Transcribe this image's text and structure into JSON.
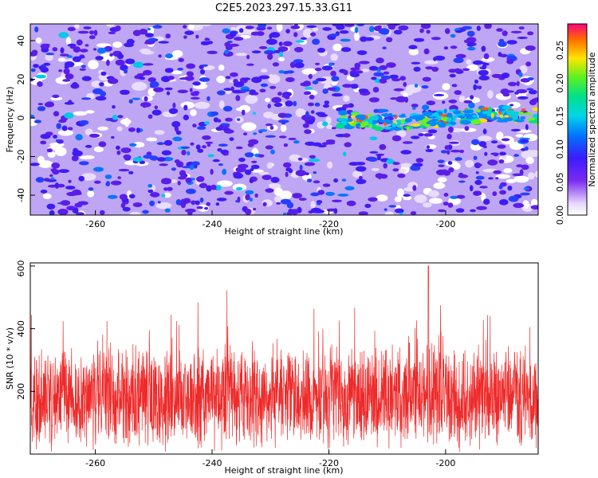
{
  "chart_data": [
    {
      "type": "heatmap",
      "title": "C2E5.2023.297.15.33.G11",
      "xlabel": "Height of straight line (km)",
      "ylabel": "Frequency (Hz)",
      "xlim": [
        -271,
        -184
      ],
      "ylim": [
        -50,
        49
      ],
      "xticks": [
        -260,
        -240,
        -220,
        -200
      ],
      "yticks": [
        40,
        20,
        0,
        -20,
        -40
      ],
      "colorbar": {
        "label": "Normalized spectral amplitude",
        "range": [
          0,
          0.29
        ],
        "ticks": [
          "0.00",
          "0.05",
          "0.10",
          "0.15",
          "0.20",
          "0.25"
        ]
      },
      "feature": {
        "description_points": [
          {
            "x": -215,
            "y": 0
          },
          {
            "x": -205,
            "y": 1
          },
          {
            "x": -200,
            "y": -2
          },
          {
            "x": -195,
            "y": 3
          },
          {
            "x": -190,
            "y": -1
          },
          {
            "x": -185,
            "y": 1
          }
        ],
        "peak_amplitude": 0.24
      }
    },
    {
      "type": "line",
      "xlabel": "Height of straight line (km)",
      "ylabel": "SNR (10 * v/v)",
      "xlim": [
        -271,
        -184
      ],
      "ylim": [
        0,
        610
      ],
      "xticks": [
        -260,
        -240,
        -220,
        -200
      ],
      "yticks": [
        200,
        400,
        600
      ],
      "series": [
        {
          "color": "#ee2a2a",
          "baseline_mean": 180,
          "max": 605,
          "max_at_x": -203
        }
      ]
    }
  ]
}
